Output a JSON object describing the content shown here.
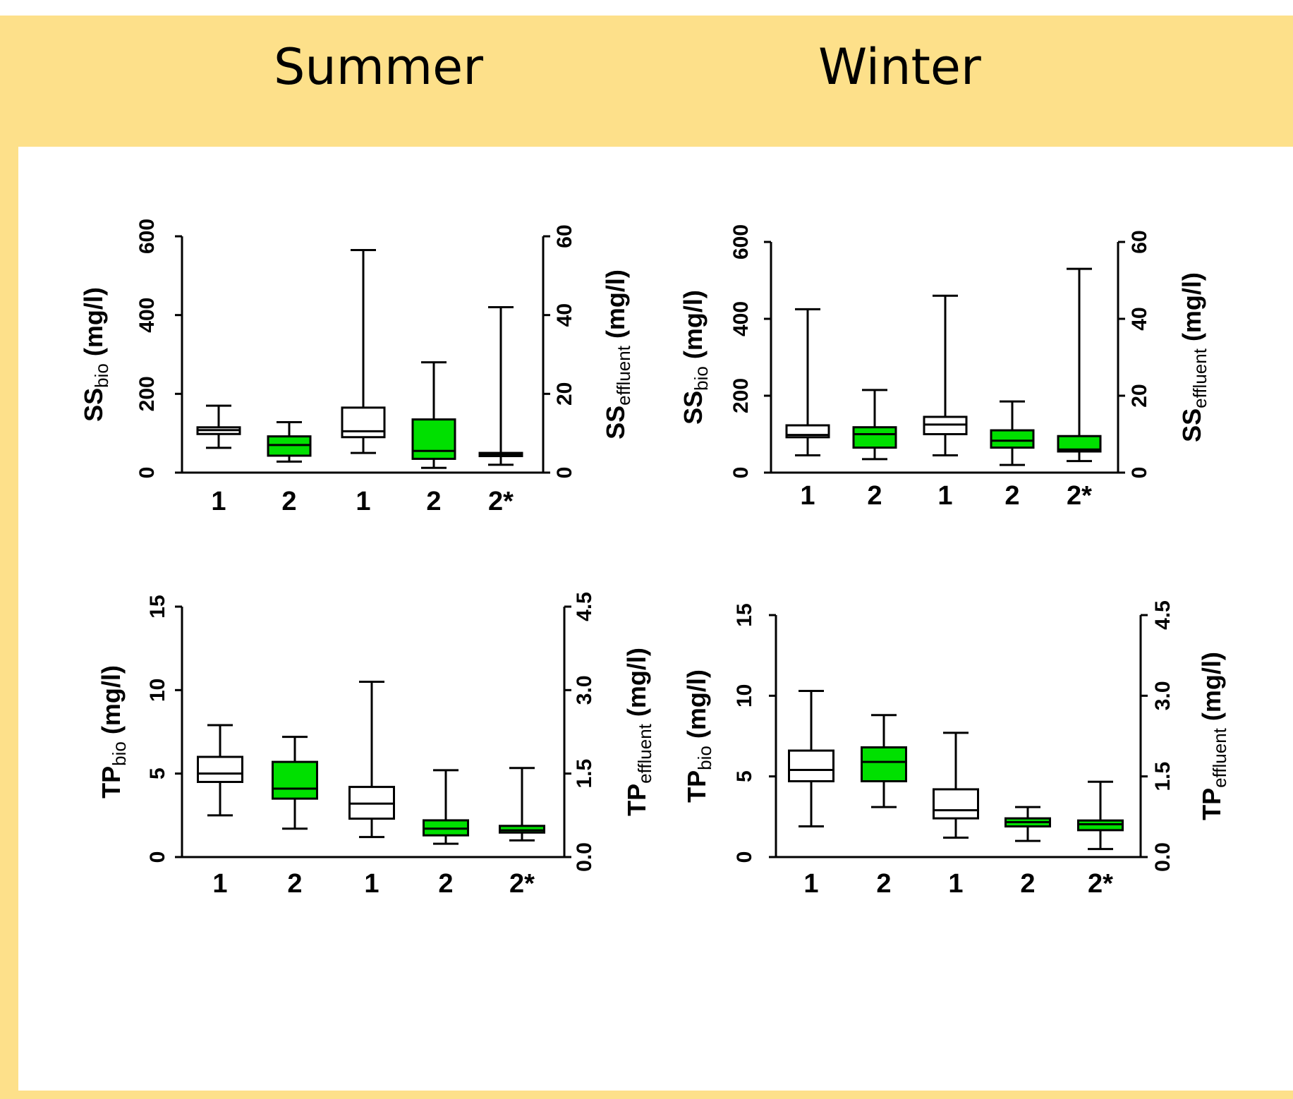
{
  "headers": {
    "summer": "Summer",
    "winter": "Winter"
  },
  "colors": {
    "frame": "#fde08a",
    "green_box": "#00e000",
    "white_box": "#ffffff"
  },
  "chart_data": [
    {
      "type": "boxplot",
      "panel": "Summer",
      "categories": [
        "1",
        "2",
        "1",
        "2",
        "2*"
      ],
      "fill": [
        "white",
        "green",
        "white",
        "green",
        "green"
      ],
      "left_axis": {
        "label_main": "SS",
        "label_sub": "bio",
        "label_unit": " (mg/l)",
        "ylim": [
          0,
          600
        ],
        "ticks": [
          "0",
          "200",
          "400",
          "600"
        ]
      },
      "right_axis": {
        "label_main": "SS",
        "label_sub": "effluent",
        "label_unit": " (mg/l)",
        "ylim": [
          0,
          60
        ],
        "ticks": [
          "0",
          "20",
          "40",
          "60"
        ]
      },
      "series": [
        {
          "category": "1",
          "axis": "left",
          "min": 63,
          "q1": 98,
          "median": 108,
          "q3": 115,
          "max": 170
        },
        {
          "category": "2",
          "axis": "left",
          "min": 28,
          "q1": 43,
          "median": 70,
          "q3": 92,
          "max": 128
        },
        {
          "category": "1",
          "axis": "right",
          "min": 5,
          "q1": 9,
          "median": 10.5,
          "q3": 16.5,
          "max": 56.5
        },
        {
          "category": "2",
          "axis": "right",
          "min": 1.2,
          "q1": 3.5,
          "median": 5.5,
          "q3": 13.5,
          "max": 28
        },
        {
          "category": "2*",
          "axis": "right",
          "min": 2,
          "q1": 4.2,
          "median": 4.7,
          "q3": 5,
          "max": 42
        }
      ]
    },
    {
      "type": "boxplot",
      "panel": "Winter",
      "categories": [
        "1",
        "2",
        "1",
        "2",
        "2*"
      ],
      "fill": [
        "white",
        "green",
        "white",
        "green",
        "green"
      ],
      "left_axis": {
        "label_main": "SS",
        "label_sub": "bio",
        "label_unit": " (mg/l)",
        "ylim": [
          0,
          600
        ],
        "ticks": [
          "0",
          "200",
          "400",
          "600"
        ]
      },
      "right_axis": {
        "label_main": "SS",
        "label_sub": "effluent",
        "label_unit": " (mg/l)",
        "ylim": [
          0,
          60
        ],
        "ticks": [
          "0",
          "20",
          "40",
          "60"
        ]
      },
      "series": [
        {
          "category": "1",
          "axis": "left",
          "min": 45,
          "q1": 92,
          "median": 98,
          "q3": 123,
          "max": 425
        },
        {
          "category": "2",
          "axis": "left",
          "min": 35,
          "q1": 65,
          "median": 100,
          "q3": 118,
          "max": 215
        },
        {
          "category": "1",
          "axis": "right",
          "min": 4.5,
          "q1": 10,
          "median": 12.5,
          "q3": 14.5,
          "max": 46
        },
        {
          "category": "2",
          "axis": "right",
          "min": 2,
          "q1": 6.5,
          "median": 8.3,
          "q3": 11,
          "max": 18.5
        },
        {
          "category": "2*",
          "axis": "right",
          "min": 3,
          "q1": 5.5,
          "median": 6,
          "q3": 9.5,
          "max": 53
        }
      ]
    },
    {
      "type": "boxplot",
      "panel": "Summer",
      "categories": [
        "1",
        "2",
        "1",
        "2",
        "2*"
      ],
      "fill": [
        "white",
        "green",
        "white",
        "green",
        "green"
      ],
      "left_axis": {
        "label_main": "TP",
        "label_sub": "bio",
        "label_unit": " (mg/l)",
        "ylim": [
          0,
          15
        ],
        "ticks": [
          "0",
          "5",
          "10",
          "15"
        ]
      },
      "right_axis": {
        "label_main": "TP",
        "label_sub": "effluent",
        "label_unit": " (mg/l)",
        "ylim": [
          0,
          4.5
        ],
        "ticks": [
          "0.0",
          "1.5",
          "3.0",
          "4.5"
        ]
      },
      "series": [
        {
          "category": "1",
          "axis": "left",
          "min": 2.5,
          "q1": 4.5,
          "median": 5,
          "q3": 6,
          "max": 7.9
        },
        {
          "category": "2",
          "axis": "left",
          "min": 1.7,
          "q1": 3.5,
          "median": 4.1,
          "q3": 5.7,
          "max": 7.2
        },
        {
          "category": "1",
          "axis": "left",
          "min": 1.2,
          "q1": 2.3,
          "median": 3.2,
          "q3": 4.2,
          "max": 10.5
        },
        {
          "category": "2",
          "axis": "right",
          "min": 0.24,
          "q1": 0.39,
          "median": 0.51,
          "q3": 0.66,
          "max": 1.56
        },
        {
          "category": "2*",
          "axis": "right",
          "min": 0.3,
          "q1": 0.44,
          "median": 0.48,
          "q3": 0.56,
          "max": 1.6
        }
      ]
    },
    {
      "type": "boxplot",
      "panel": "Winter",
      "categories": [
        "1",
        "2",
        "1",
        "2",
        "2*"
      ],
      "fill": [
        "white",
        "green",
        "white",
        "green",
        "green"
      ],
      "left_axis": {
        "label_main": "TP",
        "label_sub": "bio",
        "label_unit": " (mg/l)",
        "ylim": [
          0,
          15
        ],
        "ticks": [
          "0",
          "5",
          "10",
          "15"
        ]
      },
      "right_axis": {
        "label_main": "TP",
        "label_sub": "effluent",
        "label_unit": " (mg/l)",
        "ylim": [
          0,
          4.5
        ],
        "ticks": [
          "0.0",
          "1.5",
          "3.0",
          "4.5"
        ]
      },
      "series": [
        {
          "category": "1",
          "axis": "left",
          "min": 1.9,
          "q1": 4.7,
          "median": 5.4,
          "q3": 6.6,
          "max": 10.3
        },
        {
          "category": "2",
          "axis": "left",
          "min": 3.1,
          "q1": 4.7,
          "median": 5.9,
          "q3": 6.8,
          "max": 8.8
        },
        {
          "category": "1",
          "axis": "left",
          "min": 1.2,
          "q1": 2.4,
          "median": 2.9,
          "q3": 4.2,
          "max": 7.7
        },
        {
          "category": "2",
          "axis": "right",
          "min": 0.3,
          "q1": 0.57,
          "median": 0.65,
          "q3": 0.72,
          "max": 0.93
        },
        {
          "category": "2*",
          "axis": "right",
          "min": 0.15,
          "q1": 0.5,
          "median": 0.61,
          "q3": 0.68,
          "max": 1.4
        }
      ]
    }
  ]
}
